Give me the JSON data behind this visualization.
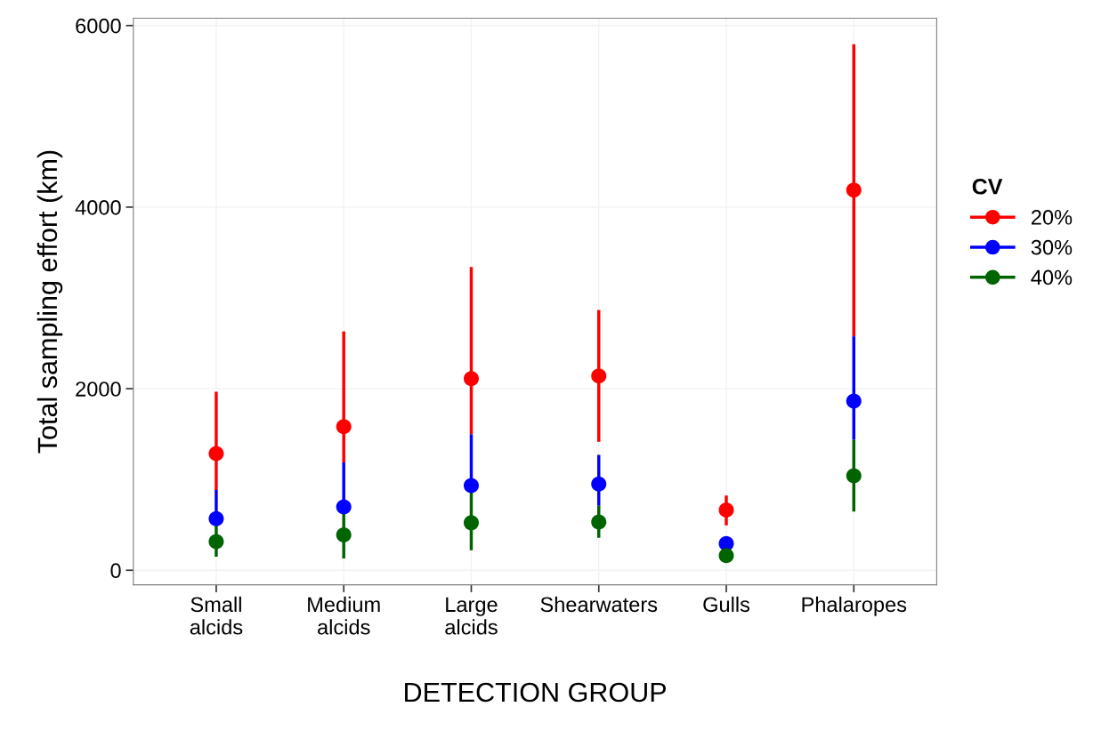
{
  "chart_data": {
    "type": "scatter",
    "xlabel": "DETECTION GROUP",
    "ylabel": "Total sampling effort (km)",
    "legend_title": "CV",
    "categories": [
      "Small\nalcids",
      "Medium\nalcids",
      "Large\nalcids",
      "Shearwaters",
      "Gulls",
      "Phalaropes"
    ],
    "series": [
      {
        "name": "20%",
        "color": "#ff0000",
        "values": [
          1286,
          1581,
          2112,
          2141,
          664,
          4187
        ],
        "errors": [
          [
            884,
            1967
          ],
          [
            1187,
            2631
          ],
          [
            1498,
            3340
          ],
          [
            1415,
            2867
          ],
          [
            494,
            822
          ],
          [
            2577,
            5793
          ]
        ]
      },
      {
        "name": "30%",
        "color": "#0000ff",
        "values": [
          568,
          697,
          934,
          950,
          295,
          1863
        ],
        "errors": [
          [
            494,
            884
          ],
          [
            627,
            1187
          ],
          [
            855,
            1498
          ],
          [
            710,
            1270
          ],
          null,
          [
            1436,
            2577
          ]
        ]
      },
      {
        "name": "40%",
        "color": "#006400",
        "values": [
          315,
          390,
          523,
          531,
          162,
          1041
        ],
        "errors": [
          [
            149,
            494
          ],
          [
            129,
            627
          ],
          [
            220,
            855
          ],
          [
            357,
            710
          ],
          null,
          [
            647,
            1436
          ]
        ]
      }
    ],
    "ylim": [
      -160,
      6080
    ],
    "yticks": [
      0,
      2000,
      4000,
      6000
    ],
    "grid": true,
    "legend": "right",
    "marker": "circle"
  }
}
